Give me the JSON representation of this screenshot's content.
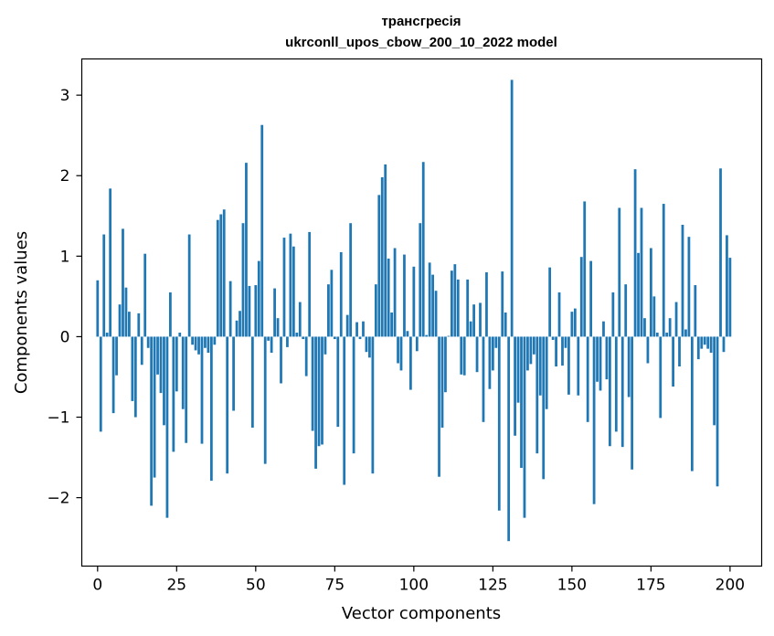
{
  "chart_data": {
    "type": "bar",
    "title": "трансгресія",
    "subtitle": "ukrconll_upos_cbow_200_10_2022 model",
    "xlabel": "Vector components",
    "ylabel": "Components values",
    "xlim": [
      -5,
      210
    ],
    "ylim": [
      -2.85,
      3.45
    ],
    "xticks": [
      0,
      25,
      50,
      75,
      100,
      125,
      150,
      175,
      200
    ],
    "yticks": [
      -2,
      -1,
      0,
      1,
      2,
      3
    ],
    "ytick_labels": [
      "−2",
      "−1",
      "0",
      "1",
      "2",
      "3"
    ],
    "bar_color": "#1f77b4",
    "values": [
      0.7,
      -1.18,
      1.27,
      0.05,
      1.84,
      -0.95,
      -0.48,
      0.4,
      1.34,
      0.61,
      0.31,
      -0.8,
      -1.0,
      0.29,
      -0.35,
      1.03,
      -0.14,
      -2.1,
      -1.75,
      -0.47,
      -0.7,
      -1.1,
      -2.25,
      0.55,
      -1.43,
      -0.68,
      0.05,
      -0.9,
      -1.32,
      1.27,
      -0.1,
      -0.17,
      -0.22,
      -1.33,
      -0.14,
      -0.2,
      -1.79,
      -0.1,
      1.45,
      1.52,
      1.58,
      -1.7,
      0.69,
      -0.92,
      0.2,
      0.32,
      1.41,
      2.16,
      0.63,
      -1.13,
      0.64,
      0.94,
      2.63,
      -1.58,
      -0.05,
      -0.2,
      0.6,
      0.23,
      -0.58,
      1.23,
      -0.13,
      1.28,
      1.12,
      0.05,
      0.43,
      -0.03,
      -0.49,
      1.3,
      -1.17,
      -1.64,
      -1.36,
      -1.34,
      -0.22,
      0.65,
      0.83,
      -0.03,
      -1.12,
      1.05,
      -1.84,
      0.27,
      1.41,
      -1.45,
      0.18,
      -0.03,
      0.19,
      -0.19,
      -0.26,
      -1.7,
      0.65,
      1.76,
      1.98,
      2.14,
      0.97,
      0.3,
      1.1,
      -0.33,
      -0.42,
      1.02,
      0.07,
      -0.66,
      0.87,
      -0.18,
      1.41,
      2.17,
      0.02,
      0.92,
      0.77,
      0.57,
      -1.74,
      -1.13,
      -0.69,
      0.01,
      0.82,
      0.9,
      0.71,
      -0.47,
      -0.48,
      0.71,
      0.19,
      0.4,
      -0.44,
      0.42,
      -1.06,
      0.8,
      -0.65,
      -0.42,
      -0.14,
      -2.16,
      0.81,
      0.3,
      -2.54,
      3.19,
      -1.23,
      -0.82,
      -1.63,
      -2.25,
      -0.42,
      -0.34,
      -0.22,
      -1.45,
      -0.73,
      -1.77,
      -0.9,
      0.86,
      -0.04,
      -0.37,
      0.55,
      -0.36,
      -0.14,
      -0.72,
      0.31,
      0.35,
      -0.73,
      0.99,
      1.68,
      -1.06,
      0.94,
      -2.08,
      -0.56,
      -0.67,
      0.19,
      -0.53,
      -1.36,
      0.55,
      -1.18,
      1.6,
      -1.37,
      0.65,
      -0.75,
      -1.65,
      2.08,
      1.04,
      1.6,
      0.23,
      -0.33,
      1.1,
      0.5,
      0.05,
      -1.01,
      1.65,
      0.05,
      0.23,
      -0.62,
      0.43,
      -0.37,
      1.39,
      0.09,
      1.24,
      -1.67,
      0.64,
      -0.28,
      -0.15,
      -0.1,
      -0.15,
      -0.2,
      -1.1,
      -1.86,
      2.09,
      -0.19,
      1.26,
      0.98
    ]
  }
}
